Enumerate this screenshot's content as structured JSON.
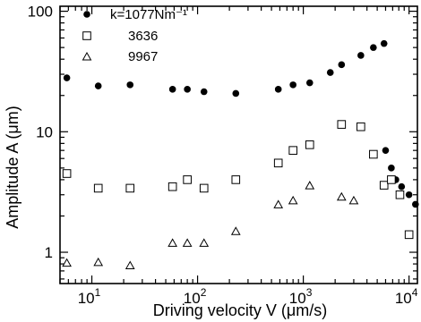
{
  "chart_data": {
    "type": "scatter",
    "title": "",
    "xlabel": "Driving velocity V (μm/s)",
    "ylabel": "Amplitude  A  (μm)",
    "xscale": "log",
    "yscale": "log",
    "xlim": [
      5,
      12000
    ],
    "ylim": [
      0.55,
      110
    ],
    "grid": false,
    "legend_position": "top-left",
    "x_ticks": [
      {
        "value": 10,
        "base": "10",
        "exp": "1"
      },
      {
        "value": 100,
        "base": "10",
        "exp": "2"
      },
      {
        "value": 1000,
        "base": "10",
        "exp": "3"
      },
      {
        "value": 10000,
        "base": "10",
        "exp": "4"
      }
    ],
    "y_ticks": [
      {
        "value": 1,
        "label": "1"
      },
      {
        "value": 10,
        "label": "10"
      },
      {
        "value": 100,
        "label": "100"
      }
    ],
    "series": [
      {
        "name": "k=1077Nm⁻¹",
        "marker": "filled-circle",
        "points": [
          [
            5.8,
            28
          ],
          [
            11.5,
            24
          ],
          [
            23,
            24.5
          ],
          [
            58,
            22.5
          ],
          [
            80,
            22.5
          ],
          [
            115,
            21.5
          ],
          [
            230,
            20.8
          ],
          [
            580,
            22.5
          ],
          [
            800,
            24.5
          ],
          [
            1150,
            25.5
          ],
          [
            1800,
            31
          ],
          [
            2300,
            36
          ],
          [
            3500,
            43
          ],
          [
            4600,
            50
          ],
          [
            5800,
            54
          ],
          [
            6000,
            7
          ],
          [
            6800,
            5
          ],
          [
            7500,
            4
          ],
          [
            8500,
            3.5
          ],
          [
            10000,
            3
          ],
          [
            11500,
            2.5
          ]
        ]
      },
      {
        "name": "3636",
        "marker": "open-square",
        "points": [
          [
            5.8,
            4.5
          ],
          [
            11.5,
            3.4
          ],
          [
            23,
            3.4
          ],
          [
            58,
            3.5
          ],
          [
            80,
            4
          ],
          [
            115,
            3.4
          ],
          [
            230,
            4
          ],
          [
            580,
            5.5
          ],
          [
            800,
            7
          ],
          [
            1150,
            7.8
          ],
          [
            2300,
            11.5
          ],
          [
            3500,
            11
          ],
          [
            4600,
            6.5
          ],
          [
            5800,
            3.6
          ],
          [
            6800,
            4
          ],
          [
            8200,
            3
          ],
          [
            10000,
            1.4
          ]
        ]
      },
      {
        "name": "9967",
        "marker": "open-triangle",
        "points": [
          [
            5.8,
            0.82
          ],
          [
            11.5,
            0.83
          ],
          [
            23,
            0.78
          ],
          [
            58,
            1.2
          ],
          [
            80,
            1.2
          ],
          [
            115,
            1.2
          ],
          [
            230,
            1.5
          ],
          [
            580,
            2.5
          ],
          [
            800,
            2.7
          ],
          [
            1150,
            3.6
          ],
          [
            2300,
            2.9
          ],
          [
            3000,
            2.7
          ]
        ]
      }
    ]
  }
}
